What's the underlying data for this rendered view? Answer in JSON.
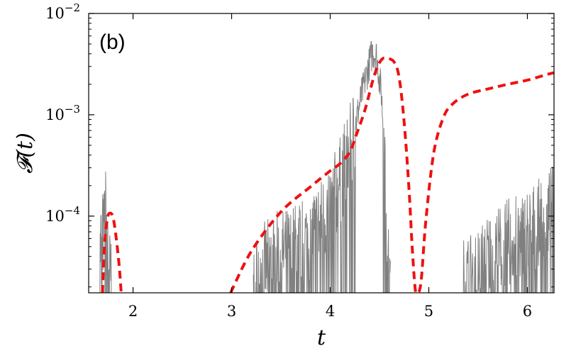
{
  "chart_data": {
    "type": "line",
    "panel_label": "(b)",
    "xlabel": "t",
    "ylabel": "𝓕(t)",
    "xlim": [
      1.55,
      6.27
    ],
    "ylim": [
      1.75e-05,
      0.01
    ],
    "yscale": "log",
    "grid": false,
    "x_ticks": [
      2,
      3,
      4,
      5,
      6
    ],
    "x_tick_labels": [
      "2",
      "3",
      "4",
      "5",
      "6"
    ],
    "y_ticks": [
      0.0001,
      0.001,
      0.01
    ],
    "y_tick_labels": [
      {
        "base": "10",
        "exp": "−4"
      },
      {
        "base": "10",
        "exp": "−3"
      },
      {
        "base": "10",
        "exp": "−2"
      }
    ],
    "series": [
      {
        "style": "dashed",
        "color": "#ee1111",
        "x": [
          1.69,
          1.71,
          1.74,
          1.77,
          1.8,
          1.83,
          1.86,
          1.88,
          2.99,
          3.2,
          3.5,
          3.8,
          4.0,
          4.1,
          4.2,
          4.25,
          4.35,
          4.45,
          4.52,
          4.58,
          4.65,
          4.7,
          4.75,
          4.8,
          4.83,
          4.86,
          4.88,
          4.92,
          4.97,
          5.05,
          5.15,
          5.25,
          5.4,
          5.6,
          5.8,
          6.0,
          6.2,
          6.27
        ],
        "y": [
          1.75e-05,
          5e-05,
          9.5e-05,
          0.000107,
          9.5e-05,
          6e-05,
          3.2e-05,
          1.75e-05,
          1.75e-05,
          4.5e-05,
          0.00011,
          0.000195,
          0.00028,
          0.00033,
          0.00043,
          0.00058,
          0.0011,
          0.0025,
          0.0035,
          0.0036,
          0.0033,
          0.0023,
          0.00085,
          0.00018,
          5.2e-05,
          2e-05,
          1.75e-05,
          2.2e-05,
          9e-05,
          0.00042,
          0.00095,
          0.0013,
          0.0016,
          0.0018,
          0.002,
          0.0022,
          0.0025,
          0.0026
        ]
      },
      {
        "style": "noisy",
        "color": "#808080",
        "x": [
          1.66,
          1.68,
          1.7,
          1.72,
          1.74,
          1.76,
          1.78,
          3.22,
          3.3,
          3.45,
          3.6,
          3.75,
          3.9,
          4.0,
          4.1,
          4.2,
          4.3,
          4.38,
          4.43,
          4.47,
          4.52,
          4.56,
          4.58,
          4.61,
          5.35,
          5.5,
          5.6,
          5.7,
          5.8,
          5.9,
          6.0,
          6.1,
          6.2,
          6.27
        ],
        "y": [
          3e-05,
          8.5e-05,
          6e-05,
          0.000115,
          7.5e-05,
          3e-05,
          2e-05,
          2.2e-05,
          3e-05,
          4e-05,
          4.5e-05,
          6e-05,
          8.5e-05,
          0.00012,
          0.00022,
          0.00045,
          0.0013,
          0.0028,
          0.0042,
          0.0038,
          0.0016,
          0.0003,
          4e-05,
          1.75e-05,
          2.2e-05,
          3e-05,
          4e-05,
          4.5e-05,
          5.5e-05,
          6e-05,
          7e-05,
          8e-05,
          0.0001,
          0.00012
        ]
      }
    ]
  }
}
